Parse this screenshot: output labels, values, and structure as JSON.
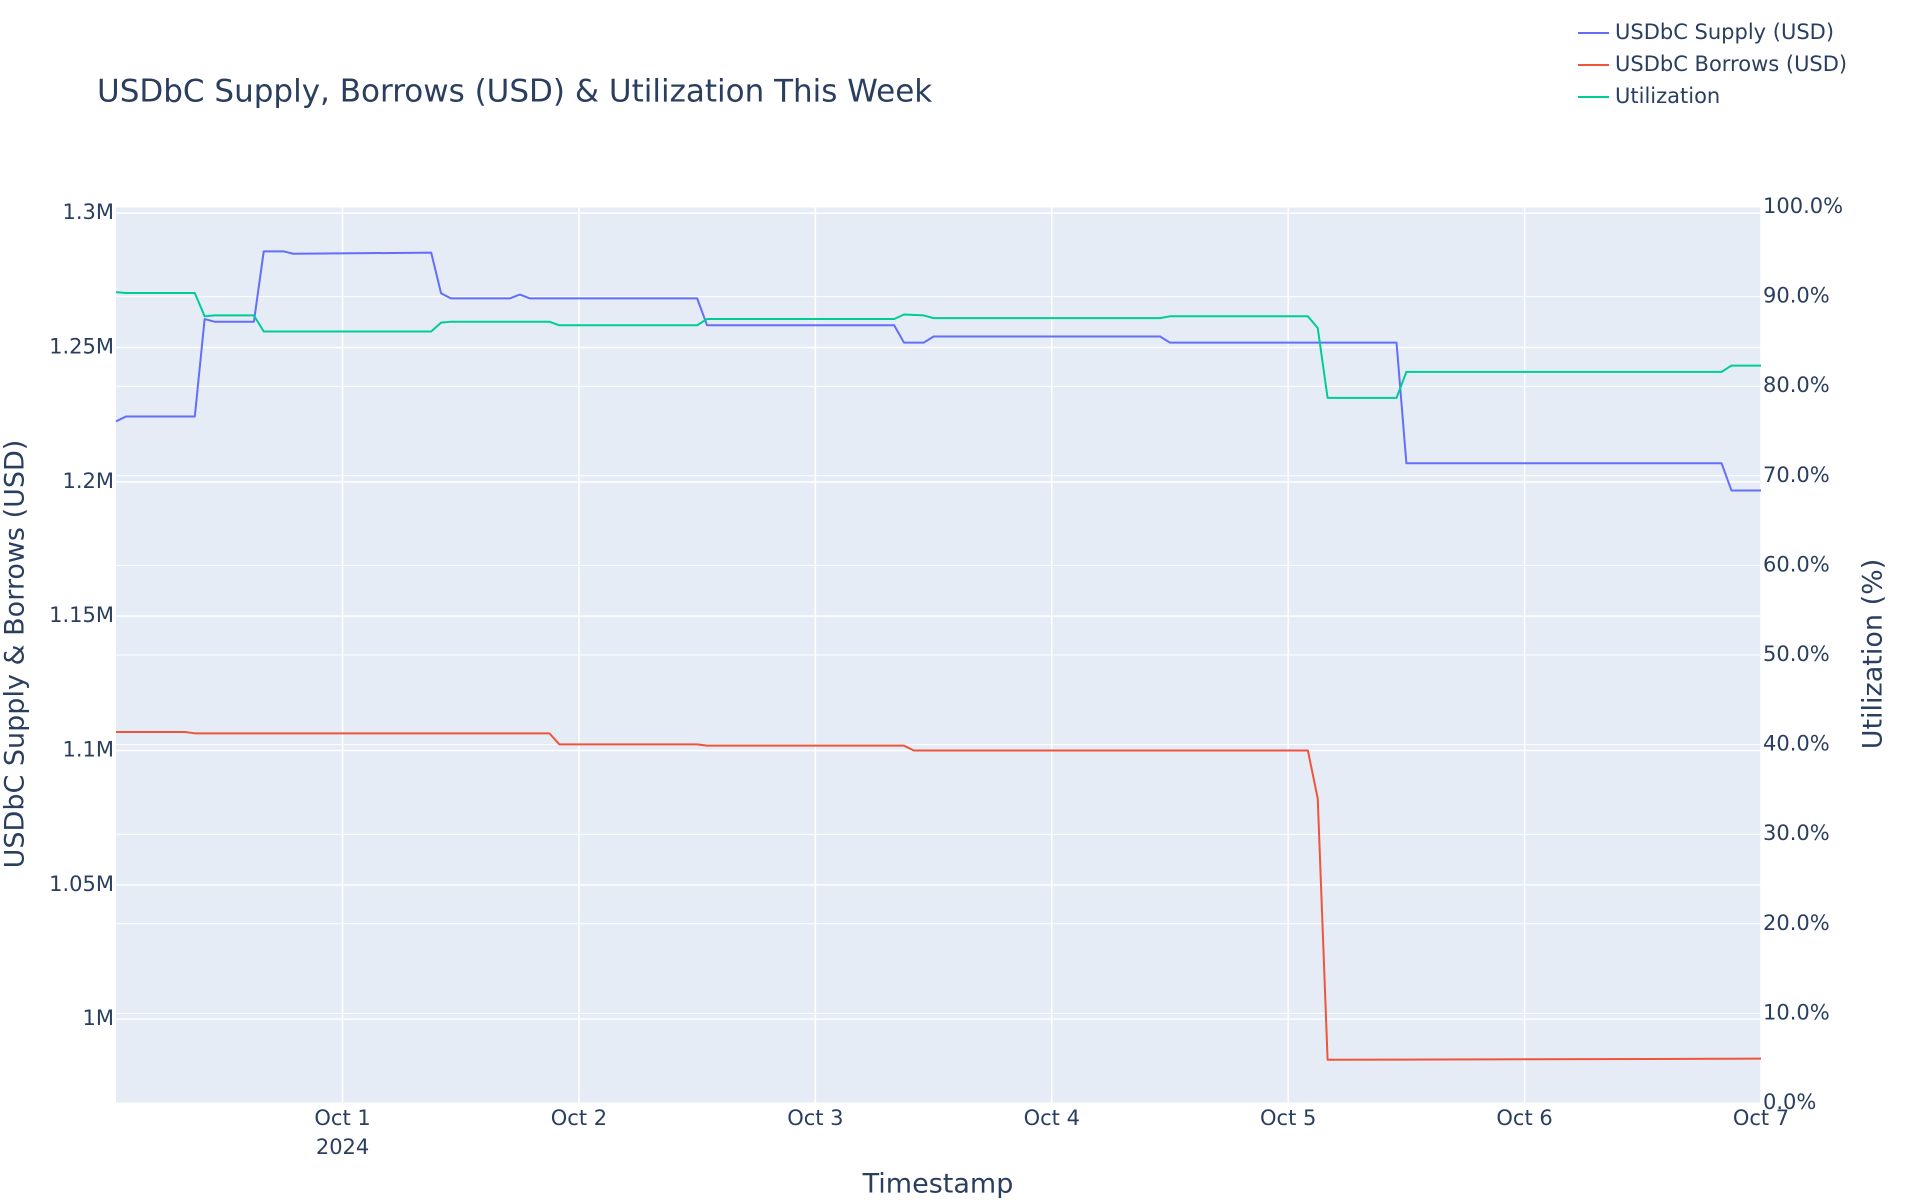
{
  "chart_data": {
    "type": "line",
    "title": "USDbC Supply, Borrows (USD) & Utilization This Week",
    "xlabel": "Timestamp",
    "ylabel": "USDbC Supply & Borrows (USD)",
    "y2label": "Utilization (%)",
    "xlim": [
      "2024-09-30T01:00",
      "2024-10-07T00:00"
    ],
    "xticks": [
      {
        "value": "2024-10-01T00:00",
        "label": "Oct 1"
      },
      {
        "value": "2024-10-02T00:00",
        "label": "Oct 2"
      },
      {
        "value": "2024-10-03T00:00",
        "label": "Oct 3"
      },
      {
        "value": "2024-10-04T00:00",
        "label": "Oct 4"
      },
      {
        "value": "2024-10-05T00:00",
        "label": "Oct 5"
      },
      {
        "value": "2024-10-06T00:00",
        "label": "Oct 6"
      },
      {
        "value": "2024-10-07T00:00",
        "label": "Oct 7"
      }
    ],
    "xtick_year": "2024",
    "ylim": [
      968800,
      1302300
    ],
    "yticks": [
      {
        "value": 1000000,
        "label": "1M"
      },
      {
        "value": 1050000,
        "label": "1.05M"
      },
      {
        "value": 1100000,
        "label": "1.1M"
      },
      {
        "value": 1150000,
        "label": "1.15M"
      },
      {
        "value": 1200000,
        "label": "1.2M"
      },
      {
        "value": 1250000,
        "label": "1.25M"
      },
      {
        "value": 1300000,
        "label": "1.3M"
      }
    ],
    "y2lim": [
      0,
      100
    ],
    "y2ticks": [
      {
        "value": 0,
        "label": "0.0%"
      },
      {
        "value": 10,
        "label": "10.0%"
      },
      {
        "value": 20,
        "label": "20.0%"
      },
      {
        "value": 30,
        "label": "30.0%"
      },
      {
        "value": 40,
        "label": "40.0%"
      },
      {
        "value": 50,
        "label": "50.0%"
      },
      {
        "value": 60,
        "label": "60.0%"
      },
      {
        "value": 70,
        "label": "70.0%"
      },
      {
        "value": 80,
        "label": "80.0%"
      },
      {
        "value": 90,
        "label": "90.0%"
      },
      {
        "value": 100,
        "label": "100.0%"
      }
    ],
    "grid": true,
    "legend_position": "top-right",
    "series": [
      {
        "name": "USDbC Supply (USD)",
        "color": "#636efa",
        "x": [
          "2024-09-30T01:00",
          "2024-09-30T02:00",
          "2024-09-30T09:00",
          "2024-09-30T10:00",
          "2024-09-30T11:00",
          "2024-09-30T15:00",
          "2024-09-30T16:00",
          "2024-09-30T18:00",
          "2024-09-30T19:00",
          "2024-10-01T09:00",
          "2024-10-01T10:00",
          "2024-10-01T11:00",
          "2024-10-01T17:00",
          "2024-10-01T18:00",
          "2024-10-01T19:00",
          "2024-10-02T12:00",
          "2024-10-02T13:00",
          "2024-10-03T08:00",
          "2024-10-03T09:00",
          "2024-10-03T11:00",
          "2024-10-03T12:00",
          "2024-10-04T11:00",
          "2024-10-04T12:00",
          "2024-10-05T11:00",
          "2024-10-05T12:00",
          "2024-10-06T20:00",
          "2024-10-06T21:00",
          "2024-10-07T00:00"
        ],
        "values": [
          1222500,
          1224300,
          1224300,
          1260600,
          1259600,
          1259600,
          1285800,
          1285800,
          1284900,
          1285300,
          1270200,
          1268300,
          1268300,
          1269700,
          1268300,
          1268300,
          1258300,
          1258300,
          1251800,
          1251800,
          1254100,
          1254100,
          1251800,
          1251800,
          1206900,
          1206900,
          1196800,
          1196800
        ]
      },
      {
        "name": "USDbC Borrows (USD)",
        "color": "#ef553b",
        "x": [
          "2024-09-30T01:00",
          "2024-09-30T08:00",
          "2024-09-30T09:00",
          "2024-10-01T21:00",
          "2024-10-01T22:00",
          "2024-10-02T12:00",
          "2024-10-02T13:00",
          "2024-10-03T09:00",
          "2024-10-03T10:00",
          "2024-10-05T02:00",
          "2024-10-05T03:00",
          "2024-10-05T04:00",
          "2024-10-07T00:00"
        ],
        "values": [
          1106900,
          1106900,
          1106400,
          1106400,
          1102300,
          1102300,
          1101800,
          1101800,
          1100000,
          1100000,
          1082100,
          984900,
          985300
        ]
      },
      {
        "name": "Utilization",
        "color": "#00cc96",
        "axis": "y2",
        "x": [
          "2024-09-30T01:00",
          "2024-09-30T02:00",
          "2024-09-30T09:00",
          "2024-09-30T10:00",
          "2024-09-30T11:00",
          "2024-09-30T15:00",
          "2024-09-30T16:00",
          "2024-10-01T09:00",
          "2024-10-01T10:00",
          "2024-10-01T11:00",
          "2024-10-01T21:00",
          "2024-10-01T22:00",
          "2024-10-02T12:00",
          "2024-10-02T13:00",
          "2024-10-03T08:00",
          "2024-10-03T09:00",
          "2024-10-03T11:00",
          "2024-10-03T12:00",
          "2024-10-04T11:00",
          "2024-10-04T12:00",
          "2024-10-05T02:00",
          "2024-10-05T03:00",
          "2024-10-05T04:00",
          "2024-10-05T11:00",
          "2024-10-05T12:00",
          "2024-10-06T20:00",
          "2024-10-06T21:00",
          "2024-10-07T00:00"
        ],
        "values": [
          90.5,
          90.4,
          90.4,
          87.8,
          87.9,
          87.9,
          86.1,
          86.1,
          87.1,
          87.2,
          87.2,
          86.8,
          86.8,
          87.5,
          87.5,
          88.0,
          87.9,
          87.6,
          87.6,
          87.8,
          87.8,
          86.5,
          78.7,
          78.7,
          81.6,
          81.6,
          82.3,
          82.3
        ]
      }
    ]
  }
}
